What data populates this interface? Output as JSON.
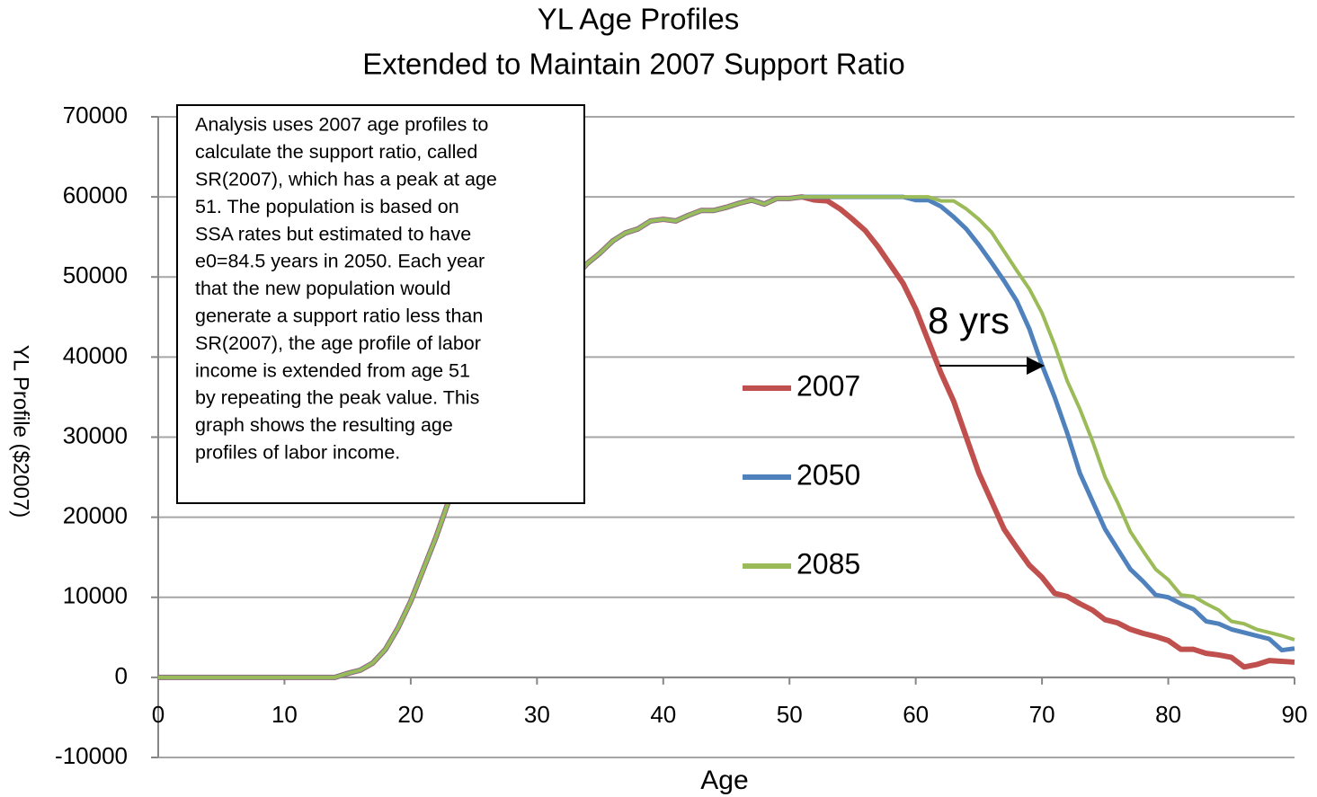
{
  "chart_data": {
    "type": "line",
    "title": "YL Age Profiles",
    "subtitle": "Extended to Maintain 2007 Support Ratio",
    "x_label": "Age",
    "y_label": "YL Profile ($2007)",
    "x": [
      0,
      1,
      2,
      3,
      4,
      5,
      6,
      7,
      8,
      9,
      10,
      11,
      12,
      13,
      14,
      15,
      16,
      17,
      18,
      19,
      20,
      21,
      22,
      23,
      24,
      25,
      26,
      27,
      28,
      29,
      30,
      31,
      32,
      33,
      34,
      35,
      36,
      37,
      38,
      39,
      40,
      41,
      42,
      43,
      44,
      45,
      46,
      47,
      48,
      49,
      50,
      51,
      52,
      53,
      54,
      55,
      56,
      57,
      58,
      59,
      60,
      61,
      62,
      63,
      64,
      65,
      66,
      67,
      68,
      69,
      70,
      71,
      72,
      73,
      74,
      75,
      76,
      77,
      78,
      79,
      80,
      81,
      82,
      83,
      84,
      85,
      86,
      87,
      88,
      89,
      90
    ],
    "series": [
      {
        "name": "2007",
        "color": "#c0504d",
        "values": [
          0,
          0,
          0,
          0,
          0,
          0,
          0,
          0,
          0,
          0,
          0,
          0,
          0,
          0,
          0,
          500,
          900,
          1800,
          3500,
          6200,
          9500,
          13500,
          17500,
          22000,
          27000,
          31000,
          35000,
          38500,
          41500,
          44000,
          46000,
          47500,
          48500,
          50000,
          51700,
          53000,
          54500,
          55500,
          56000,
          57000,
          57200,
          57000,
          57700,
          58300,
          58300,
          58700,
          59200,
          59600,
          59100,
          59800,
          59800,
          60000,
          59600,
          59500,
          58500,
          57200,
          55800,
          53800,
          51500,
          49200,
          46000,
          42000,
          38000,
          34500,
          30000,
          25500,
          22000,
          18500,
          16200,
          14000,
          12500,
          10500,
          10100,
          9200,
          8400,
          7200,
          6800,
          6000,
          5500,
          5100,
          4600,
          3500,
          3500,
          3000,
          2800,
          2500,
          1300,
          1600,
          2100,
          2000,
          1900
        ]
      },
      {
        "name": "2050",
        "color": "#4f81bd",
        "values": [
          0,
          0,
          0,
          0,
          0,
          0,
          0,
          0,
          0,
          0,
          0,
          0,
          0,
          0,
          0,
          500,
          900,
          1800,
          3500,
          6200,
          9500,
          13500,
          17500,
          22000,
          27000,
          31000,
          35000,
          38500,
          41500,
          44000,
          46000,
          47500,
          48500,
          50000,
          51700,
          53000,
          54500,
          55500,
          56000,
          57000,
          57200,
          57000,
          57700,
          58300,
          58300,
          58700,
          59200,
          59600,
          59100,
          59800,
          59800,
          60000,
          60000,
          60000,
          60000,
          60000,
          60000,
          60000,
          60000,
          60000,
          59600,
          59600,
          58800,
          57500,
          56000,
          54000,
          51800,
          49500,
          47000,
          43500,
          39000,
          35000,
          30500,
          25500,
          22000,
          18500,
          16000,
          13500,
          12000,
          10300,
          10000,
          9200,
          8500,
          7000,
          6700,
          6000,
          5600,
          5200,
          4800,
          3400,
          3600
        ]
      },
      {
        "name": "2085",
        "color": "#9bbb59",
        "values": [
          0,
          0,
          0,
          0,
          0,
          0,
          0,
          0,
          0,
          0,
          0,
          0,
          0,
          0,
          0,
          500,
          900,
          1800,
          3500,
          6200,
          9500,
          13500,
          17500,
          22000,
          27000,
          31000,
          35000,
          38500,
          41500,
          44000,
          46000,
          47500,
          48500,
          50000,
          51700,
          53000,
          54500,
          55500,
          56000,
          57000,
          57200,
          57000,
          57700,
          58300,
          58300,
          58700,
          59200,
          59600,
          59100,
          59800,
          59800,
          60000,
          60000,
          60000,
          60000,
          60000,
          60000,
          60000,
          60000,
          60000,
          60000,
          60000,
          59500,
          59500,
          58500,
          57200,
          55600,
          53200,
          50800,
          48500,
          45500,
          41500,
          37000,
          33500,
          29500,
          25000,
          21800,
          18200,
          15800,
          13500,
          12200,
          10300,
          10100,
          9200,
          8400,
          7000,
          6700,
          6000,
          5600,
          5200,
          4700
        ]
      }
    ],
    "xlim": [
      0,
      90
    ],
    "xticks": [
      0,
      10,
      20,
      30,
      40,
      50,
      60,
      70,
      80,
      90
    ],
    "ylim": [
      -10000,
      70000
    ],
    "yticks": [
      -10000,
      0,
      10000,
      20000,
      30000,
      40000,
      50000,
      60000,
      70000
    ],
    "grid": true,
    "annotation_box": [
      "Analysis uses 2007 age profiles to",
      "calculate the support ratio, called",
      "SR(2007), which has a peak at age",
      "51.  The population is based on",
      "SSA rates but estimated to have",
      "e0=84.5 years in 2050.  Each year",
      "that the new population would",
      "generate a support ratio less than",
      "SR(2007), the age profile of labor",
      "income is extended from age 51",
      "by repeating the peak value.  This",
      "graph shows the resulting  age",
      "profiles of labor income."
    ],
    "shift_label": "8 yrs"
  }
}
